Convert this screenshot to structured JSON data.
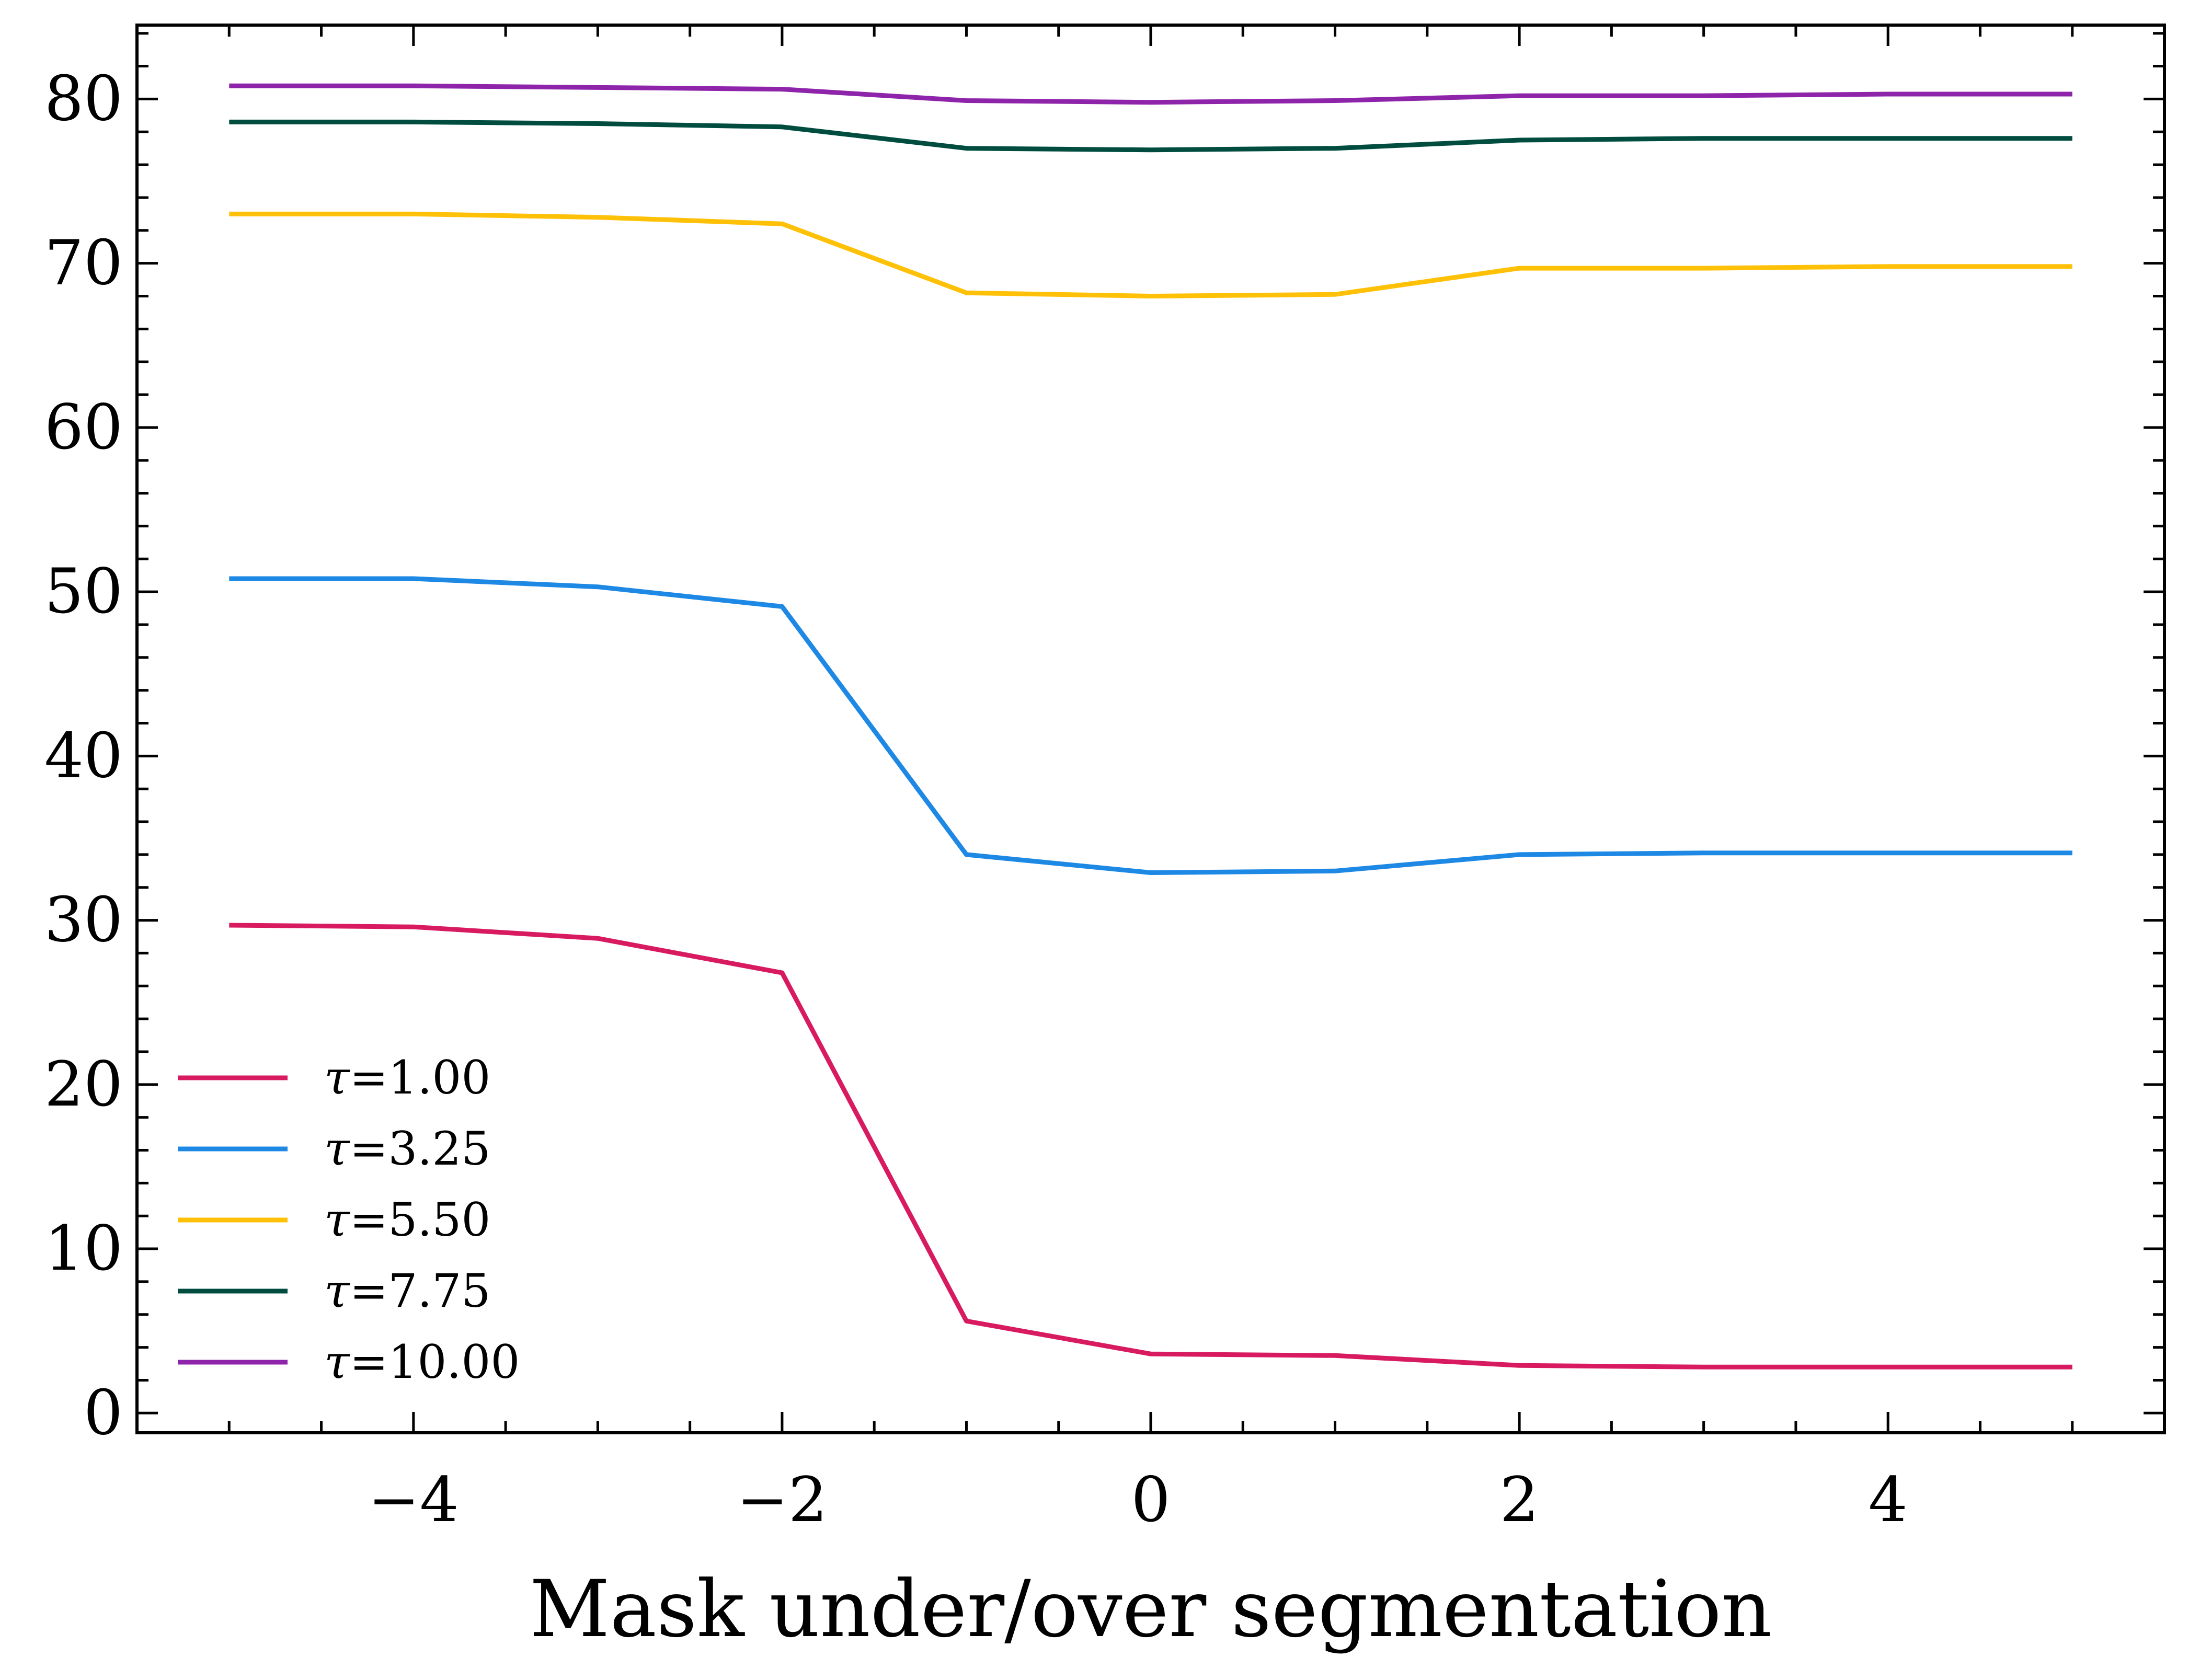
{
  "chart_data": {
    "type": "line",
    "title": "",
    "xlabel": "Mask under/over segmentation",
    "ylabel": "",
    "xlim": [
      -5.5,
      5.5
    ],
    "ylim": [
      -1.2,
      84.5
    ],
    "x_ticks": [
      -4,
      -2,
      0,
      2,
      4
    ],
    "x_tick_labels": [
      "−4",
      "−2",
      "0",
      "2",
      "4"
    ],
    "y_ticks": [
      0,
      10,
      20,
      30,
      40,
      50,
      60,
      70,
      80
    ],
    "y_tick_labels": [
      "0",
      "10",
      "20",
      "30",
      "40",
      "50",
      "60",
      "70",
      "80"
    ],
    "x_minor_step": 0.5,
    "y_minor_step": 2,
    "grid": false,
    "legend_location": "lower-left",
    "x": [
      -5,
      -4,
      -3,
      -2,
      -1,
      0,
      1,
      2,
      3,
      4,
      5
    ],
    "series": [
      {
        "name": "τ=1.00",
        "symbol": "τ",
        "value_label": "=1.00",
        "color": "#d81b60",
        "values": [
          29.7,
          29.6,
          28.9,
          26.8,
          5.6,
          3.6,
          3.5,
          2.9,
          2.8,
          2.8,
          2.8
        ]
      },
      {
        "name": "τ=3.25",
        "symbol": "τ",
        "value_label": "=3.25",
        "color": "#1e88e5",
        "values": [
          50.8,
          50.8,
          50.3,
          49.1,
          34.0,
          32.9,
          33.0,
          34.0,
          34.1,
          34.1,
          34.1
        ]
      },
      {
        "name": "τ=5.50",
        "symbol": "τ",
        "value_label": "=5.50",
        "color": "#ffc107",
        "values": [
          73.0,
          73.0,
          72.8,
          72.4,
          68.2,
          68.0,
          68.1,
          69.7,
          69.7,
          69.8,
          69.8
        ]
      },
      {
        "name": "τ=7.75",
        "symbol": "τ",
        "value_label": "=7.75",
        "color": "#004d40",
        "values": [
          78.6,
          78.6,
          78.5,
          78.3,
          77.0,
          76.9,
          77.0,
          77.5,
          77.6,
          77.6,
          77.6
        ]
      },
      {
        "name": "τ=10.00",
        "symbol": "τ",
        "value_label": "=10.00",
        "color": "#8e24aa",
        "values": [
          80.8,
          80.8,
          80.7,
          80.6,
          79.9,
          79.8,
          79.9,
          80.2,
          80.2,
          80.3,
          80.3
        ]
      }
    ]
  }
}
